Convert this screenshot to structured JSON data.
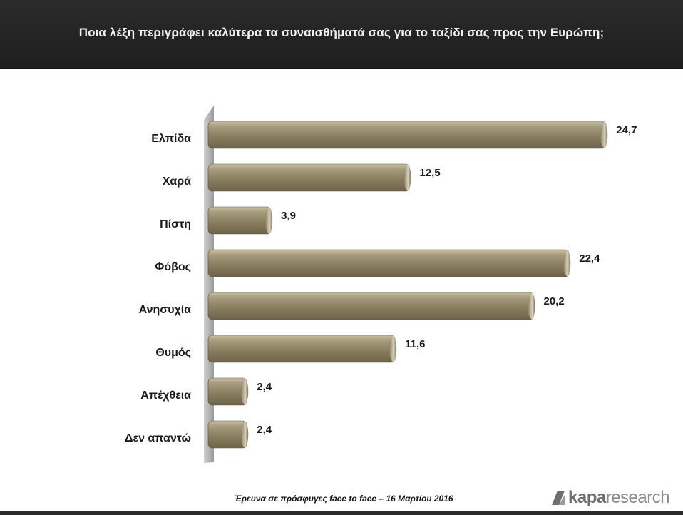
{
  "header": {
    "title": "Ποια λέξη περιγράφει καλύτερα τα συναισθήματά σας για το ταξίδι σας προς την Ευρώπη;"
  },
  "chart_data": {
    "type": "bar",
    "orientation": "horizontal",
    "categories": [
      "Ελπίδα",
      "Χαρά",
      "Πίστη",
      "Φόβος",
      "Ανησυχία",
      "Θυμός",
      "Απέχθεια",
      "Δεν απαντώ"
    ],
    "value_labels": [
      "24,7",
      "12,5",
      "3,9",
      "22,4",
      "20,2",
      "11,6",
      "2,4",
      "2,4"
    ],
    "values": [
      24.7,
      12.5,
      3.9,
      22.4,
      20.2,
      11.6,
      2.4,
      2.4
    ],
    "xlim": [
      0,
      25
    ],
    "grid": false,
    "bar_color": "#8f8466"
  },
  "footer": {
    "note": "Έρευνα σε πρόσφυγες face to face – 16 Μαρτίου 2016"
  },
  "logo": {
    "bold": "kapa",
    "light": "research"
  }
}
